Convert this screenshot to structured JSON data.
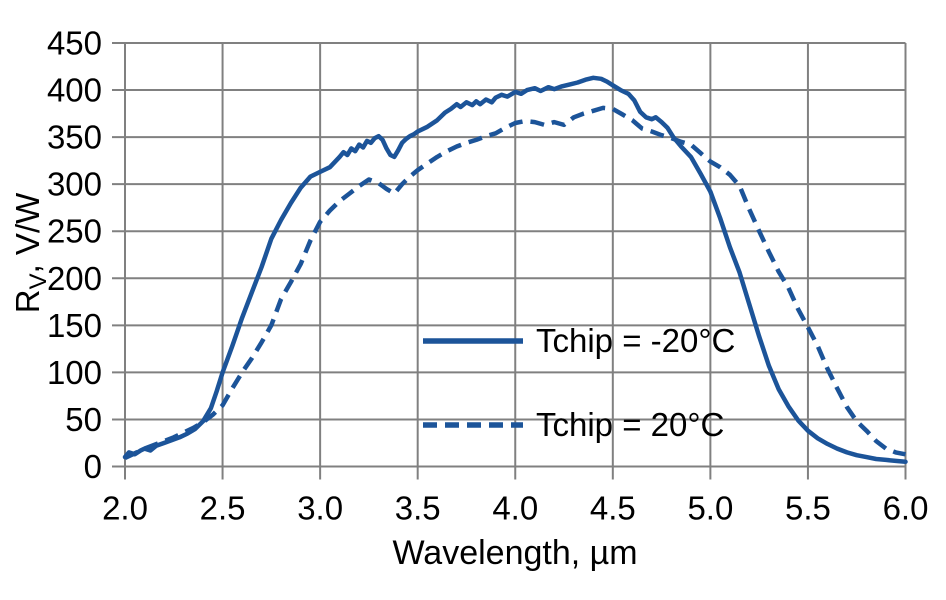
{
  "chart_data": {
    "type": "line",
    "title": "",
    "xlabel": "Wavelength, µm",
    "ylabel": "R_V, V/W",
    "ylabel_parts": {
      "main": "R",
      "sub": "V",
      "rest": ", V/W"
    },
    "xlim": [
      2.0,
      6.0
    ],
    "ylim": [
      0,
      450
    ],
    "x_ticks": [
      2.0,
      2.5,
      3.0,
      3.5,
      4.0,
      4.5,
      5.0,
      5.5,
      6.0
    ],
    "x_tick_labels": [
      "2.0",
      "2.5",
      "3.0",
      "3.5",
      "4.0",
      "4.5",
      "5.0",
      "5.5",
      "6.0"
    ],
    "y_ticks": [
      0,
      50,
      100,
      150,
      200,
      250,
      300,
      350,
      400,
      450
    ],
    "y_tick_labels": [
      "0",
      "50",
      "100",
      "150",
      "200",
      "250",
      "300",
      "350",
      "400",
      "450"
    ],
    "grid": true,
    "legend_position": "inside-lower-right",
    "colors": {
      "line": "#1c5499",
      "grid": "#808080",
      "text": "#000000",
      "background": "#ffffff"
    },
    "series": [
      {
        "name": "Tchip = -20°C",
        "dash": false,
        "points": [
          [
            2.0,
            10
          ],
          [
            2.02,
            15
          ],
          [
            2.05,
            13
          ],
          [
            2.08,
            17
          ],
          [
            2.1,
            19
          ],
          [
            2.13,
            17
          ],
          [
            2.16,
            22
          ],
          [
            2.2,
            25
          ],
          [
            2.24,
            28
          ],
          [
            2.28,
            31
          ],
          [
            2.32,
            35
          ],
          [
            2.36,
            40
          ],
          [
            2.4,
            48
          ],
          [
            2.44,
            62
          ],
          [
            2.47,
            80
          ],
          [
            2.5,
            100
          ],
          [
            2.55,
            128
          ],
          [
            2.6,
            158
          ],
          [
            2.65,
            185
          ],
          [
            2.7,
            212
          ],
          [
            2.75,
            242
          ],
          [
            2.8,
            262
          ],
          [
            2.85,
            280
          ],
          [
            2.9,
            296
          ],
          [
            2.95,
            308
          ],
          [
            3.0,
            313
          ],
          [
            3.05,
            318
          ],
          [
            3.1,
            329
          ],
          [
            3.12,
            334
          ],
          [
            3.14,
            331
          ],
          [
            3.16,
            338
          ],
          [
            3.18,
            335
          ],
          [
            3.2,
            342
          ],
          [
            3.22,
            339
          ],
          [
            3.24,
            346
          ],
          [
            3.26,
            344
          ],
          [
            3.28,
            349
          ],
          [
            3.3,
            351
          ],
          [
            3.32,
            347
          ],
          [
            3.34,
            338
          ],
          [
            3.36,
            331
          ],
          [
            3.38,
            329
          ],
          [
            3.4,
            336
          ],
          [
            3.42,
            344
          ],
          [
            3.44,
            348
          ],
          [
            3.46,
            351
          ],
          [
            3.48,
            353
          ],
          [
            3.5,
            356
          ],
          [
            3.55,
            361
          ],
          [
            3.6,
            368
          ],
          [
            3.64,
            376
          ],
          [
            3.67,
            380
          ],
          [
            3.7,
            385
          ],
          [
            3.72,
            382
          ],
          [
            3.75,
            387
          ],
          [
            3.78,
            384
          ],
          [
            3.8,
            388
          ],
          [
            3.82,
            385
          ],
          [
            3.85,
            390
          ],
          [
            3.88,
            387
          ],
          [
            3.9,
            392
          ],
          [
            3.93,
            395
          ],
          [
            3.96,
            393
          ],
          [
            4.0,
            398
          ],
          [
            4.03,
            396
          ],
          [
            4.06,
            400
          ],
          [
            4.1,
            402
          ],
          [
            4.13,
            399
          ],
          [
            4.17,
            403
          ],
          [
            4.2,
            401
          ],
          [
            4.24,
            404
          ],
          [
            4.28,
            406
          ],
          [
            4.32,
            408
          ],
          [
            4.36,
            411
          ],
          [
            4.4,
            413
          ],
          [
            4.44,
            412
          ],
          [
            4.47,
            409
          ],
          [
            4.5,
            405
          ],
          [
            4.54,
            400
          ],
          [
            4.58,
            396
          ],
          [
            4.61,
            389
          ],
          [
            4.64,
            377
          ],
          [
            4.67,
            371
          ],
          [
            4.7,
            369
          ],
          [
            4.72,
            371
          ],
          [
            4.75,
            366
          ],
          [
            4.78,
            360
          ],
          [
            4.81,
            350
          ],
          [
            4.85,
            340
          ],
          [
            4.9,
            329
          ],
          [
            4.95,
            311
          ],
          [
            5.0,
            292
          ],
          [
            5.05,
            264
          ],
          [
            5.1,
            233
          ],
          [
            5.15,
            206
          ],
          [
            5.2,
            172
          ],
          [
            5.25,
            138
          ],
          [
            5.3,
            107
          ],
          [
            5.35,
            82
          ],
          [
            5.4,
            64
          ],
          [
            5.45,
            49
          ],
          [
            5.5,
            38
          ],
          [
            5.55,
            30
          ],
          [
            5.6,
            24
          ],
          [
            5.65,
            19
          ],
          [
            5.7,
            15
          ],
          [
            5.75,
            12
          ],
          [
            5.8,
            10
          ],
          [
            5.85,
            8
          ],
          [
            5.9,
            7
          ],
          [
            5.95,
            6
          ],
          [
            6.0,
            5
          ]
        ]
      },
      {
        "name": "Tchip = 20°C",
        "dash": true,
        "points": [
          [
            2.0,
            9
          ],
          [
            2.05,
            14
          ],
          [
            2.1,
            19
          ],
          [
            2.15,
            23
          ],
          [
            2.2,
            27
          ],
          [
            2.25,
            31
          ],
          [
            2.3,
            36
          ],
          [
            2.35,
            41
          ],
          [
            2.4,
            47
          ],
          [
            2.45,
            55
          ],
          [
            2.5,
            65
          ],
          [
            2.55,
            83
          ],
          [
            2.6,
            100
          ],
          [
            2.65,
            115
          ],
          [
            2.7,
            132
          ],
          [
            2.75,
            150
          ],
          [
            2.8,
            178
          ],
          [
            2.85,
            196
          ],
          [
            2.9,
            215
          ],
          [
            2.95,
            240
          ],
          [
            3.0,
            260
          ],
          [
            3.05,
            272
          ],
          [
            3.1,
            282
          ],
          [
            3.15,
            290
          ],
          [
            3.2,
            298
          ],
          [
            3.25,
            305
          ],
          [
            3.3,
            301
          ],
          [
            3.34,
            295
          ],
          [
            3.38,
            290
          ],
          [
            3.42,
            300
          ],
          [
            3.46,
            308
          ],
          [
            3.5,
            315
          ],
          [
            3.55,
            322
          ],
          [
            3.6,
            329
          ],
          [
            3.65,
            335
          ],
          [
            3.7,
            340
          ],
          [
            3.75,
            344
          ],
          [
            3.8,
            347
          ],
          [
            3.85,
            351
          ],
          [
            3.9,
            354
          ],
          [
            3.95,
            360
          ],
          [
            4.0,
            365
          ],
          [
            4.05,
            367
          ],
          [
            4.1,
            366
          ],
          [
            4.15,
            363
          ],
          [
            4.2,
            366
          ],
          [
            4.25,
            363
          ],
          [
            4.3,
            371
          ],
          [
            4.35,
            375
          ],
          [
            4.4,
            378
          ],
          [
            4.45,
            381
          ],
          [
            4.5,
            380
          ],
          [
            4.55,
            374
          ],
          [
            4.6,
            368
          ],
          [
            4.65,
            359
          ],
          [
            4.7,
            356
          ],
          [
            4.75,
            352
          ],
          [
            4.8,
            349
          ],
          [
            4.85,
            345
          ],
          [
            4.9,
            342
          ],
          [
            4.95,
            333
          ],
          [
            5.0,
            324
          ],
          [
            5.05,
            318
          ],
          [
            5.1,
            310
          ],
          [
            5.15,
            298
          ],
          [
            5.2,
            273
          ],
          [
            5.25,
            250
          ],
          [
            5.3,
            228
          ],
          [
            5.35,
            207
          ],
          [
            5.4,
            190
          ],
          [
            5.45,
            167
          ],
          [
            5.5,
            148
          ],
          [
            5.55,
            128
          ],
          [
            5.6,
            104
          ],
          [
            5.65,
            83
          ],
          [
            5.7,
            63
          ],
          [
            5.75,
            48
          ],
          [
            5.8,
            38
          ],
          [
            5.85,
            27
          ],
          [
            5.9,
            19
          ],
          [
            5.95,
            15
          ],
          [
            6.0,
            13
          ]
        ]
      }
    ]
  }
}
